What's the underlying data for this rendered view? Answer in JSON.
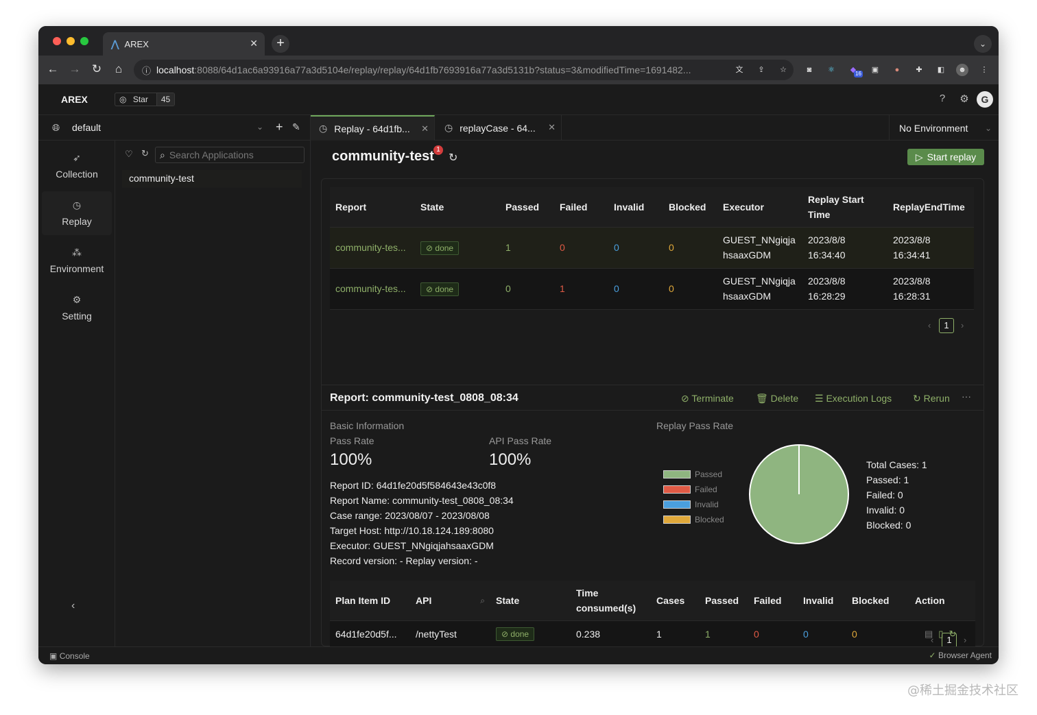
{
  "browser": {
    "tab_title": "AREX",
    "url_host": "localhost",
    "url_path": ":8088/64d1ac6a93916a77a3d5104e/replay/replay/64d1fb7693916a77a3d5131b?status=3&modifiedTime=1691482...",
    "ext_badge": "16"
  },
  "app": {
    "brand": "AREX",
    "star_label": "Star",
    "star_count": "45",
    "avatar_letter": "G"
  },
  "workspace": {
    "name": "default"
  },
  "nav": [
    {
      "label": "Collection",
      "icon": "rocket-icon"
    },
    {
      "label": "Replay",
      "icon": "history-icon"
    },
    {
      "label": "Environment",
      "icon": "cluster-icon"
    },
    {
      "label": "Setting",
      "icon": "gear-icon"
    }
  ],
  "tree": {
    "search_placeholder": "Search Applications",
    "items": [
      "community-test"
    ]
  },
  "tabs": [
    {
      "label": "Replay - 64d1fb..."
    },
    {
      "label": "replayCase - 64..."
    }
  ],
  "env_selector": "No Environment",
  "replay": {
    "app_name": "community-test",
    "badge": "1",
    "start_button": "Start replay",
    "columns": [
      "Report",
      "State",
      "Passed",
      "Failed",
      "Invalid",
      "Blocked",
      "Executor",
      "Replay Start Time",
      "ReplayEndTime"
    ],
    "rows": [
      {
        "report": "community-tes...",
        "state": "done",
        "passed": "1",
        "failed": "0",
        "invalid": "0",
        "blocked": "0",
        "executor_1": "GUEST_NNgiqja",
        "executor_2": "hsaaxGDM",
        "start_1": "2023/8/8",
        "start_2": "16:34:40",
        "end_1": "2023/8/8",
        "end_2": "16:34:41"
      },
      {
        "report": "community-tes...",
        "state": "done",
        "passed": "0",
        "failed": "1",
        "invalid": "0",
        "blocked": "0",
        "executor_1": "GUEST_NNgiqja",
        "executor_2": "hsaaxGDM",
        "start_1": "2023/8/8",
        "start_2": "16:28:29",
        "end_1": "2023/8/8",
        "end_2": "16:28:31"
      }
    ],
    "page": "1"
  },
  "report": {
    "title": "Report: community-test_0808_08:34",
    "actions": [
      "Terminate",
      "Delete",
      "Execution Logs",
      "Rerun"
    ],
    "more": "···",
    "basic_info_label": "Basic Information",
    "pass_rate_label": "Pass Rate",
    "pass_rate": "100%",
    "api_pass_rate_label": "API Pass Rate",
    "api_pass_rate": "100%",
    "replay_pass_rate_label": "Replay Pass Rate",
    "lines": [
      "Report ID: 64d1fe20d5f584643e43c0f8",
      "Report Name: community-test_0808_08:34",
      "Case range: 2023/08/07 - 2023/08/08",
      "Target Host: http://10.18.124.189:8080",
      "Executor: GUEST_NNgiqjahsaaxGDM",
      "Record version: - Replay version: -"
    ],
    "legend": [
      {
        "label": "Passed",
        "color": "#8fb580"
      },
      {
        "label": "Failed",
        "color": "#e05a45"
      },
      {
        "label": "Invalid",
        "color": "#4a9fde"
      },
      {
        "label": "Blocked",
        "color": "#e0a83a"
      }
    ],
    "pie": {
      "passed": 1,
      "failed": 0,
      "invalid": 0,
      "blocked": 0,
      "color": "#8fb580"
    },
    "stats": [
      "Total Cases: 1",
      "Passed: 1",
      "Failed: 0",
      "Invalid: 0",
      "Blocked: 0"
    ]
  },
  "plan_table": {
    "columns": [
      "Plan Item ID",
      "API",
      "State",
      "Time consumed(s)",
      "Cases",
      "Passed",
      "Failed",
      "Invalid",
      "Blocked",
      "Action"
    ],
    "rows": [
      {
        "id": "64d1fe20d5f...",
        "api": "/nettyTest",
        "state": "done",
        "time": "0.238",
        "cases": "1",
        "passed": "1",
        "failed": "0",
        "invalid": "0",
        "blocked": "0"
      }
    ],
    "page": "1"
  },
  "statusbar": {
    "left": "Console",
    "right": "Browser Agent"
  },
  "watermark": "@稀土掘金技术社区"
}
